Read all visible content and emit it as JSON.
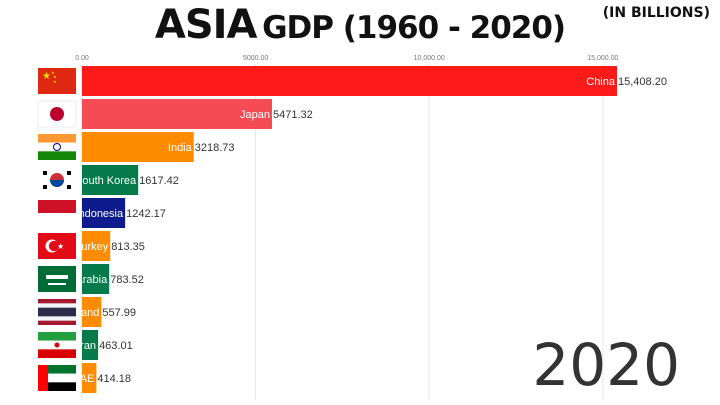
{
  "title": "ASIA",
  "subtitle": "GDP (1960 - 2020)",
  "units_label": "(IN BILLIONS)",
  "year_label": "2020",
  "chart_data": {
    "type": "bar",
    "orientation": "horizontal",
    "title": "ASIA GDP (1960 - 2020)",
    "xlabel": "",
    "ylabel": "",
    "xlim": [
      0,
      15408.2
    ],
    "grid": true,
    "x_ticks": [
      {
        "value": 0,
        "label": "0.00"
      },
      {
        "value": 5000,
        "label": "5000.00"
      },
      {
        "value": 10000,
        "label": "10,000.00"
      },
      {
        "value": 15000,
        "label": "15,000.00"
      }
    ],
    "categories": [
      "China",
      "Japan",
      "India",
      "South Korea",
      "Indonesia",
      "Turkey",
      "Saudi Arabia",
      "Thailand",
      "Iran",
      "UAE"
    ],
    "bar_labels": [
      "China",
      "Japan",
      "India",
      "South Korea",
      "Indonesia",
      "Turkey",
      "Arabia",
      "and",
      "ran",
      "AE"
    ],
    "values": [
      15408.2,
      5471.32,
      3218.73,
      1617.42,
      1242.17,
      813.35,
      783.52,
      557.99,
      463.01,
      414.18
    ],
    "value_labels": [
      "15,408.20",
      "5471.32",
      "3218.73",
      "1617.42",
      "1242.17",
      "813.35",
      "783.52",
      "557.99",
      "463.01",
      "414.18"
    ],
    "colors": [
      "#ff1a1a",
      "#f54b55",
      "#ff8c00",
      "#047a4a",
      "#0d1b8c",
      "#ff8c00",
      "#047a4a",
      "#ff8c00",
      "#047a4a",
      "#ff8c00"
    ],
    "flags": [
      "china-flag",
      "japan-flag",
      "india-flag",
      "south-korea-flag",
      "indonesia-flag",
      "turkey-flag",
      "saudi-arabia-flag",
      "thailand-flag",
      "iran-flag",
      "uae-flag"
    ]
  }
}
